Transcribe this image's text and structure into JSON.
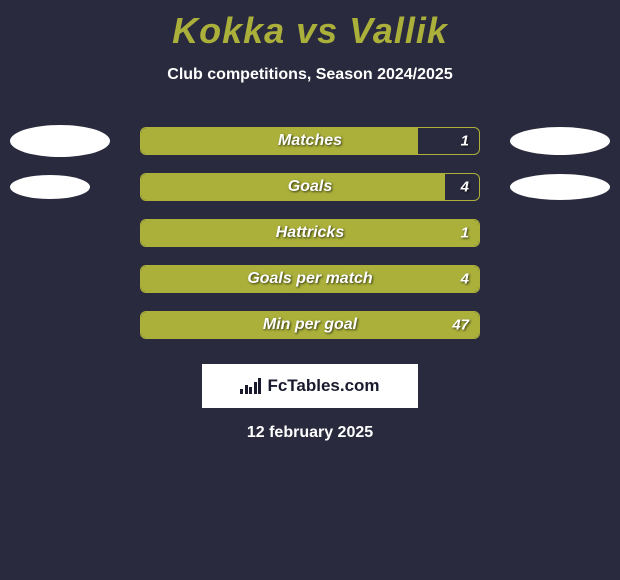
{
  "title": "Kokka vs Vallik",
  "subtitle": "Club competitions, Season 2024/2025",
  "colors": {
    "background": "#2a2a3e",
    "accent": "#aab03a",
    "text": "#ffffff",
    "ellipse": "#ffffff",
    "brand_bg": "#ffffff",
    "brand_text": "#1a1a2e"
  },
  "rows": [
    {
      "label": "Matches",
      "value": "1",
      "fill_pct": 82,
      "show_left_ellipse": true,
      "show_right_ellipse": true,
      "left_w": 100,
      "left_h": 32,
      "right_w": 100,
      "right_h": 28
    },
    {
      "label": "Goals",
      "value": "4",
      "fill_pct": 90,
      "show_left_ellipse": true,
      "show_right_ellipse": true,
      "left_w": 80,
      "left_h": 24,
      "right_w": 100,
      "right_h": 26
    },
    {
      "label": "Hattricks",
      "value": "1",
      "fill_pct": 100,
      "show_left_ellipse": false,
      "show_right_ellipse": false
    },
    {
      "label": "Goals per match",
      "value": "4",
      "fill_pct": 100,
      "show_left_ellipse": false,
      "show_right_ellipse": false
    },
    {
      "label": "Min per goal",
      "value": "47",
      "fill_pct": 100,
      "show_left_ellipse": false,
      "show_right_ellipse": false
    }
  ],
  "brand": "FcTables.com",
  "date": "12 february 2025"
}
